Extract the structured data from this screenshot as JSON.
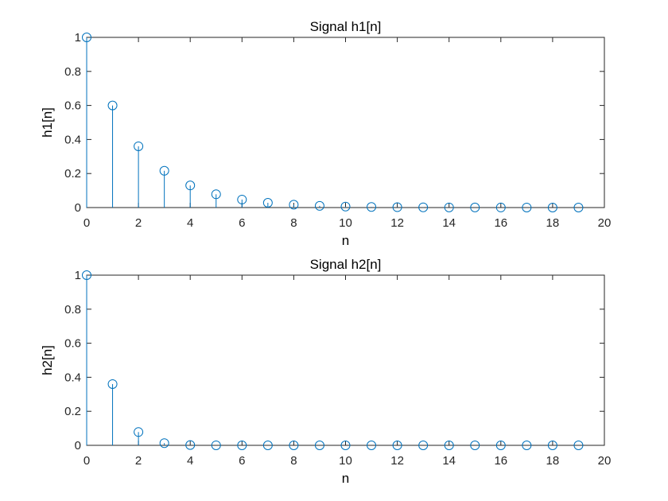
{
  "chart_data": [
    {
      "type": "stem",
      "title": "Signal h1[n]",
      "xlabel": "n",
      "ylabel": "h1[n]",
      "xlim": [
        0,
        20
      ],
      "ylim": [
        0,
        1
      ],
      "xticks": [
        "0",
        "2",
        "4",
        "6",
        "8",
        "10",
        "12",
        "14",
        "16",
        "18",
        "20"
      ],
      "yticks": [
        "0",
        "0.2",
        "0.4",
        "0.6",
        "0.8",
        "1"
      ],
      "grid": false,
      "color": "#0072BD",
      "x": [
        0,
        1,
        2,
        3,
        4,
        5,
        6,
        7,
        8,
        9,
        10,
        11,
        12,
        13,
        14,
        15,
        16,
        17,
        18,
        19
      ],
      "y": [
        1,
        0.6,
        0.36,
        0.216,
        0.13,
        0.078,
        0.047,
        0.028,
        0.017,
        0.01,
        0.006,
        0.0036,
        0.0022,
        0.0013,
        0.0008,
        0.0005,
        0.0003,
        0.0002,
        0.0001,
        0.0001
      ]
    },
    {
      "type": "stem",
      "title": "Signal h2[n]",
      "xlabel": "n",
      "ylabel": "h2[n]",
      "xlim": [
        0,
        20
      ],
      "ylim": [
        0,
        1
      ],
      "xticks": [
        "0",
        "2",
        "4",
        "6",
        "8",
        "10",
        "12",
        "14",
        "16",
        "18",
        "20"
      ],
      "yticks": [
        "0",
        "0.2",
        "0.4",
        "0.6",
        "0.8",
        "1"
      ],
      "grid": false,
      "color": "#0072BD",
      "x": [
        0,
        1,
        2,
        3,
        4,
        5,
        6,
        7,
        8,
        9,
        10,
        11,
        12,
        13,
        14,
        15,
        16,
        17,
        18,
        19
      ],
      "y": [
        1,
        0.36,
        0.078,
        0.013,
        0.0017,
        0.0002,
        0,
        0,
        0,
        0,
        0,
        0,
        0,
        0,
        0,
        0,
        0,
        0,
        0,
        0
      ]
    }
  ]
}
